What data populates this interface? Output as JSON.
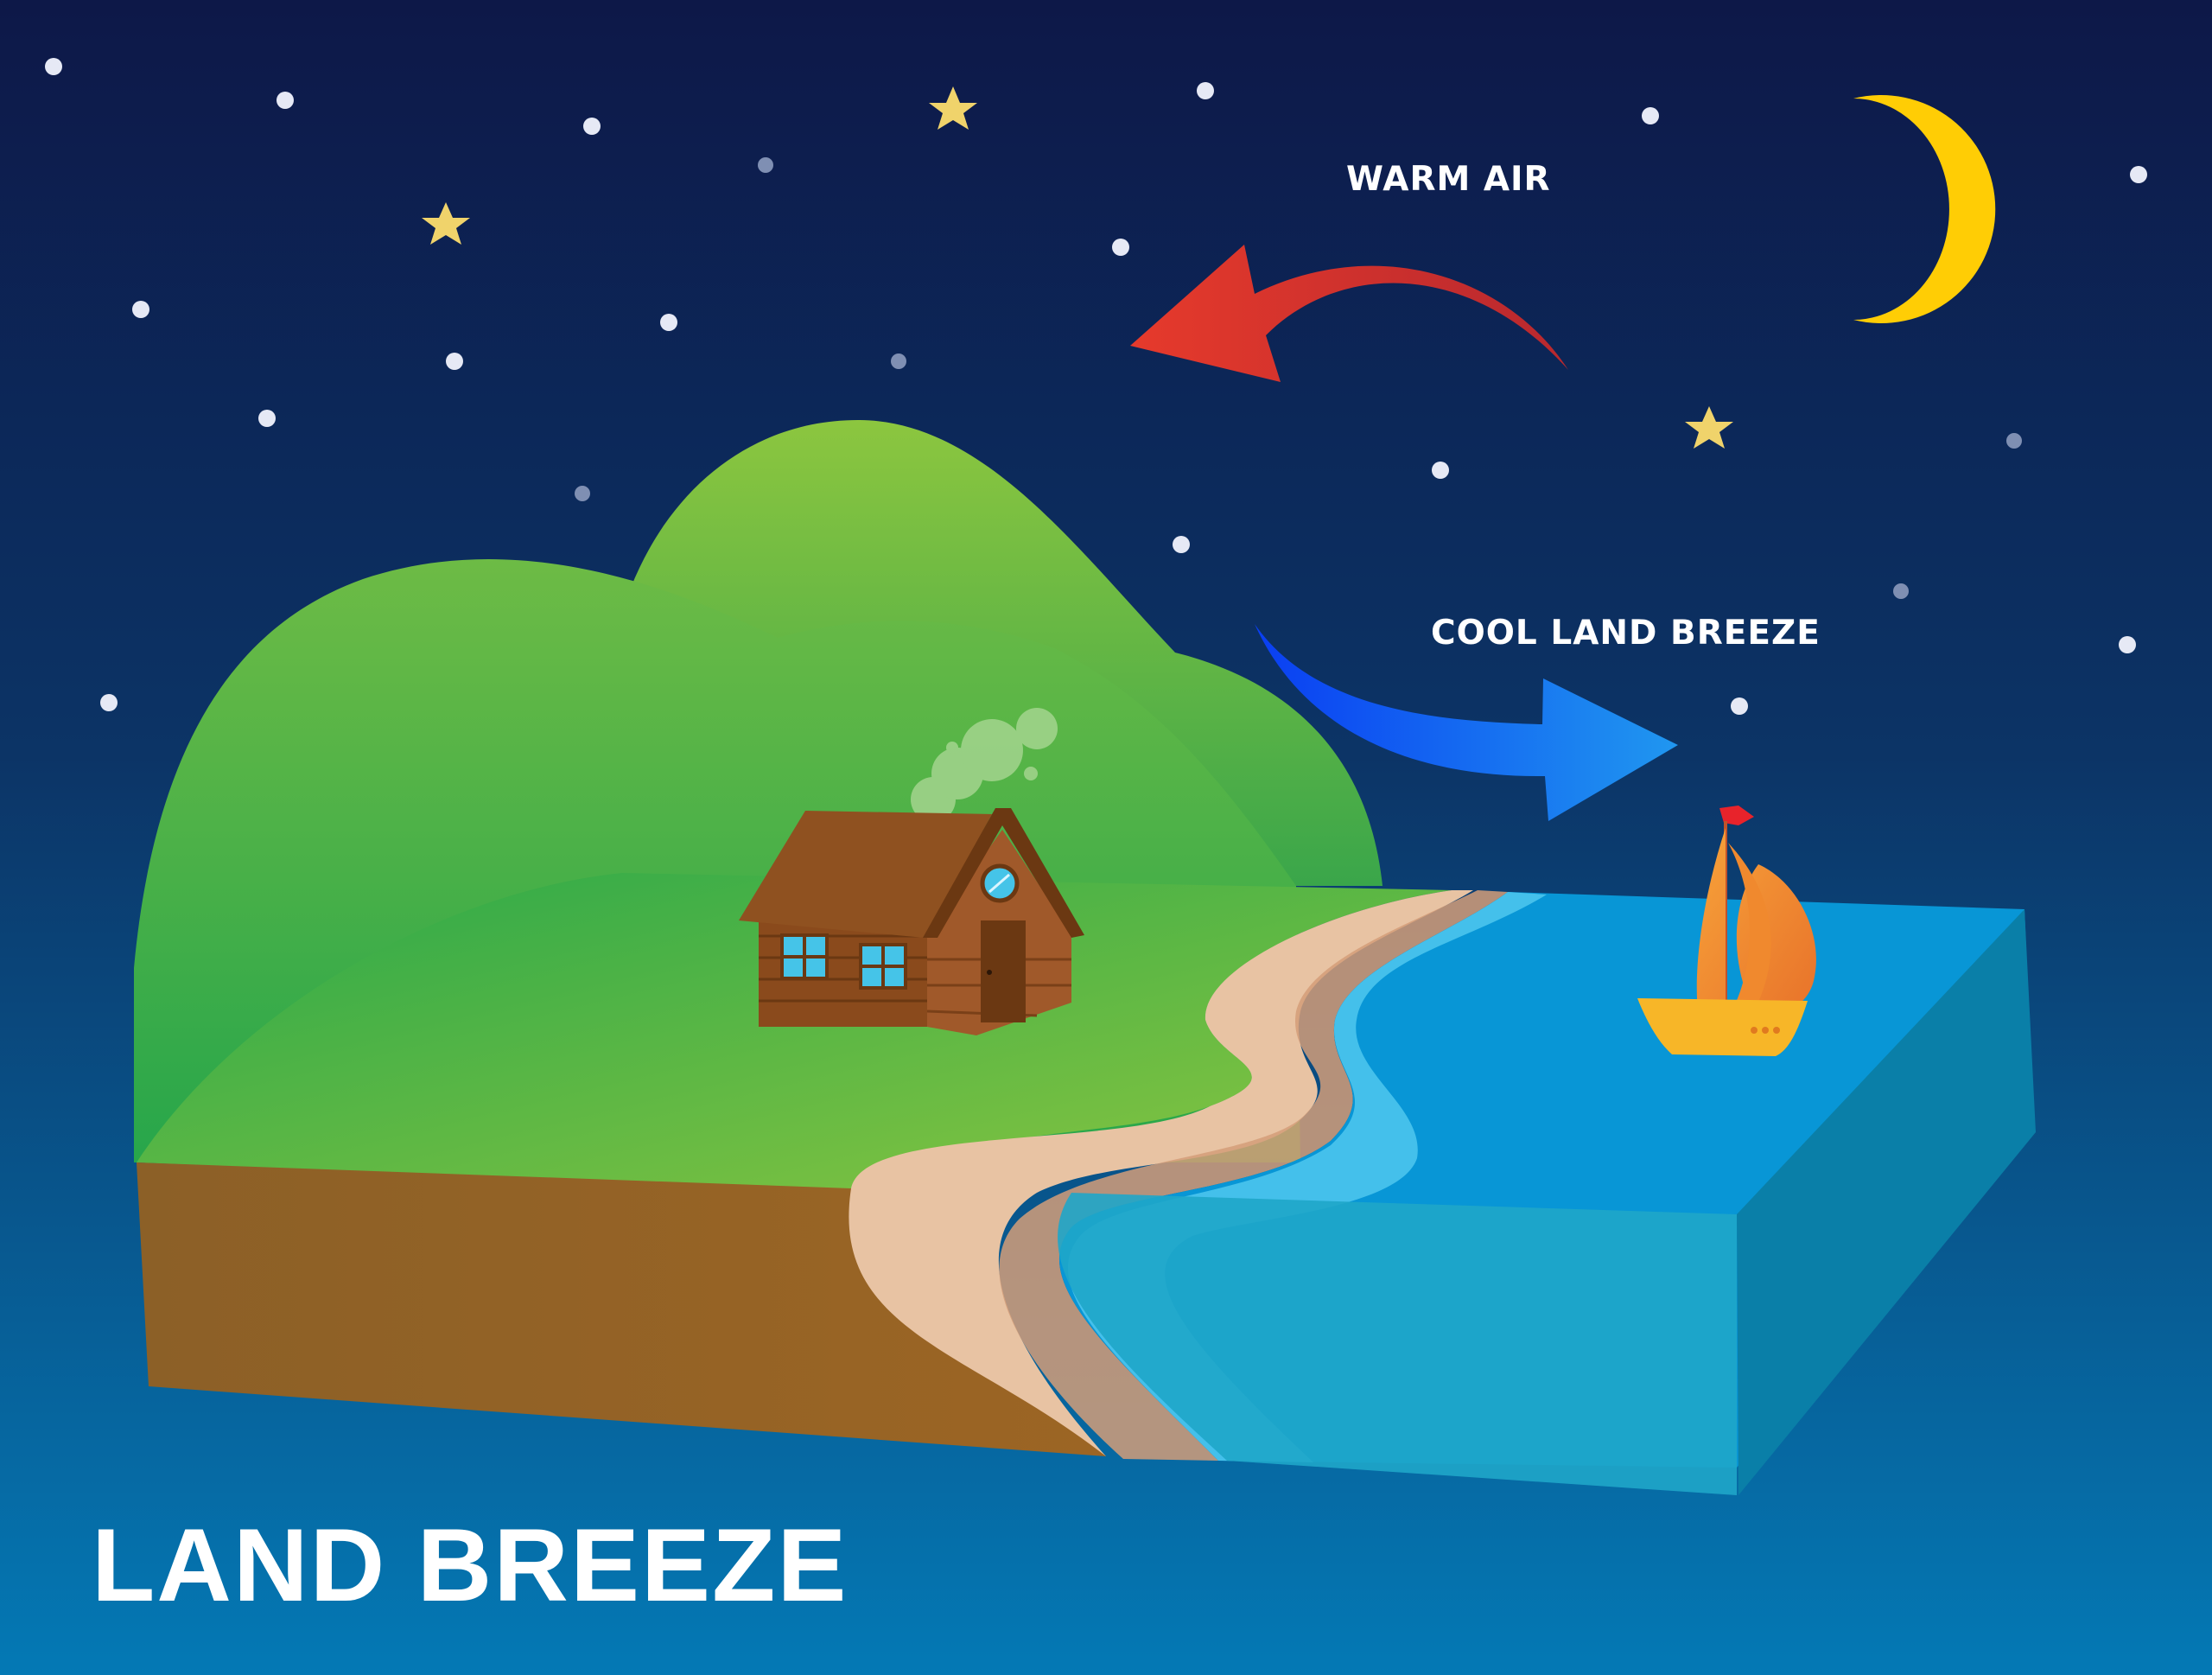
{
  "diagram": {
    "title": "LAND BREEZE",
    "labels": {
      "warm_air": "WARM AIR",
      "cool_breeze": "COOL LAND BREEZE"
    }
  }
}
